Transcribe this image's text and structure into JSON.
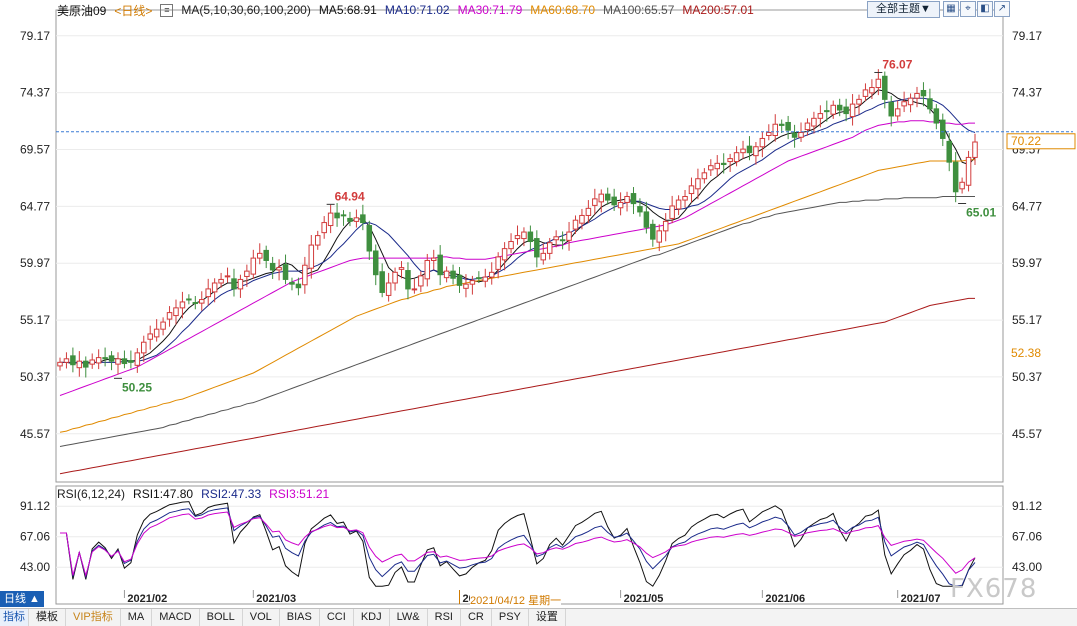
{
  "header": {
    "symbol": "美原油09",
    "period": "<日线>",
    "ma_params": "MA(5,10,30,60,100,200)",
    "ma_values": [
      {
        "label": "MA5:68.91",
        "color": "#111111"
      },
      {
        "label": "MA10:71.02",
        "color": "#1a2a8a"
      },
      {
        "label": "MA30:71.79",
        "color": "#cc00cc"
      },
      {
        "label": "MA60:68.70",
        "color": "#e08a00"
      },
      {
        "label": "MA100:65.57",
        "color": "#555555"
      },
      {
        "label": "MA200:57.01",
        "color": "#aa1a1a"
      }
    ],
    "theme_button": "全部主题▼",
    "tool_icons": [
      "grid-icon",
      "crosshair-icon",
      "left-icon",
      "popout-icon"
    ]
  },
  "rsi_header": {
    "params": "RSI(6,12,24)",
    "values": [
      {
        "label": "RSI1:47.80",
        "color": "#111111"
      },
      {
        "label": "RSI2:47.33",
        "color": "#1a2a8a"
      },
      {
        "label": "RSI3:51.21",
        "color": "#cc00cc"
      }
    ]
  },
  "bottom_bar": {
    "period_tag": "日线 ▲",
    "items": [
      "指标",
      "模板",
      "VIP指标",
      "MA",
      "MACD",
      "BOLL",
      "VOL",
      "BIAS",
      "CCI",
      "KDJ",
      "LW&",
      "RSI",
      "CR",
      "PSY",
      "设置"
    ]
  },
  "cursor_label": "2021/04/12 星期一",
  "watermark": "FX678",
  "colors": {
    "up": "#d23c3c",
    "down": "#3f8f3f",
    "grid": "#dddddd",
    "axis": "#333333"
  },
  "chart_data": {
    "type": "candlestick",
    "price_axis": {
      "ticks": [
        "79.17",
        "74.37",
        "69.57",
        "64.77",
        "59.97",
        "55.17",
        "50.37",
        "45.57"
      ],
      "ylim": [
        41.5,
        80.5
      ]
    },
    "rsi_axis": {
      "ticks": [
        "91.12",
        "67.06",
        "43.00"
      ],
      "ylim": [
        25,
        100
      ]
    },
    "x_labels": [
      "2021/02",
      "2021/03",
      "2021/04",
      "2021/05",
      "2021/06",
      "2021/07"
    ],
    "current_price": "70.22",
    "side_label": "52.38",
    "annotations": [
      {
        "text": "76.07",
        "color": "#d23c3c"
      },
      {
        "text": "64.94",
        "color": "#d23c3c"
      },
      {
        "text": "50.25",
        "color": "#3f8f3f"
      },
      {
        "text": "65.01",
        "color": "#3f8f3f"
      }
    ],
    "closes": [
      51.6,
      51.9,
      51.4,
      51.7,
      51.2,
      51.8,
      52.0,
      51.9,
      51.7,
      51.9,
      51.5,
      51.6,
      52.4,
      53.3,
      54.0,
      54.4,
      55.0,
      55.8,
      56.2,
      56.7,
      56.9,
      56.6,
      56.9,
      57.8,
      58.3,
      58.6,
      58.9,
      57.8,
      58.6,
      59.3,
      60.4,
      60.8,
      60.2,
      59.4,
      59.6,
      58.6,
      58.2,
      57.9,
      59.8,
      61.5,
      62.3,
      63.4,
      64.2,
      63.8,
      64.0,
      63.5,
      63.8,
      63.4,
      61.0,
      59.0,
      57.5,
      58.3,
      59.2,
      59.6,
      57.8,
      57.8,
      58.9,
      60.2,
      60.4,
      59.0,
      59.3,
      58.7,
      58.1,
      58.2,
      58.5,
      58.7,
      58.8,
      59.2,
      60.5,
      61.2,
      61.8,
      62.3,
      62.6,
      61.8,
      60.5,
      60.8,
      61.7,
      62.2,
      61.9,
      62.6,
      63.6,
      64.0,
      64.6,
      65.4,
      65.8,
      65.3,
      64.9,
      65.1,
      65.6,
      65.0,
      64.3,
      63.0,
      62.0,
      62.7,
      63.5,
      64.8,
      65.3,
      65.6,
      66.5,
      67.1,
      67.6,
      68.2,
      68.4,
      68.3,
      68.8,
      69.3,
      69.6,
      69.3,
      69.8,
      70.5,
      71.0,
      71.7,
      71.6,
      71.2,
      70.6,
      71.0,
      71.8,
      72.2,
      72.6,
      72.8,
      73.3,
      72.9,
      72.6,
      73.4,
      73.8,
      74.6,
      74.8,
      75.5,
      73.8,
      72.4,
      73.0,
      73.6,
      73.9,
      74.3,
      74.1,
      73.0,
      71.8,
      70.5,
      68.5,
      66.0,
      66.8,
      68.9,
      70.2
    ],
    "ma_series": [
      {
        "name": "MA5",
        "color": "#111111",
        "values": [
          51.6,
          51.6,
          51.5,
          51.6,
          51.5,
          51.6,
          51.6,
          51.8,
          51.9,
          51.9,
          51.8,
          51.7,
          51.8,
          52.1,
          52.4,
          52.9,
          53.4,
          54.0,
          54.8,
          55.6,
          56.2,
          56.6,
          56.8,
          57.2,
          57.6,
          58.0,
          58.3,
          58.3,
          58.4,
          58.5,
          58.7,
          58.9,
          59.1,
          59.2,
          59.7,
          60.0,
          59.8,
          59.3,
          59.0,
          59.2,
          59.4,
          60.2,
          61.1,
          62.1,
          62.9,
          63.5,
          63.7,
          63.7,
          63.1,
          62.0,
          60.8,
          59.6,
          59.1,
          58.8,
          58.6,
          58.7,
          58.9,
          59.2,
          59.4,
          59.2,
          59.2,
          59.1,
          59.0,
          58.7,
          58.5,
          58.4,
          58.5,
          58.8,
          59.4,
          60.0,
          60.6,
          61.2,
          61.7,
          61.9,
          61.9,
          61.7,
          61.6,
          61.5,
          61.5,
          61.9,
          62.6,
          63.1,
          63.5,
          64.1,
          64.7,
          65.0,
          65.2,
          65.3,
          65.4,
          65.2,
          65.1,
          64.8,
          64.3,
          63.9,
          63.6,
          63.6,
          63.8,
          64.4,
          65.1,
          65.6,
          66.3,
          66.9,
          67.3,
          67.8,
          68.2,
          68.5,
          68.8,
          69.0,
          69.3,
          69.6,
          70.0,
          70.4,
          70.7,
          70.9,
          71.0,
          71.0,
          71.1,
          71.3,
          71.7,
          72.1,
          72.5,
          72.7,
          72.8,
          73.0,
          73.2,
          73.7,
          74.1,
          74.6,
          74.5,
          74.3,
          73.9,
          73.7,
          73.7,
          73.5,
          73.4,
          73.0,
          72.4,
          71.6,
          70.5,
          69.6,
          68.5,
          68.3,
          68.9
        ]
      },
      {
        "name": "MA10",
        "color": "#1a2a8a",
        "values": [
          51.6,
          51.6,
          51.6,
          51.6,
          51.6,
          51.6,
          51.6,
          51.6,
          51.6,
          51.6,
          51.7,
          51.7,
          51.7,
          51.8,
          52.0,
          52.2,
          52.6,
          53.1,
          53.6,
          54.2,
          54.7,
          55.3,
          55.9,
          56.4,
          56.9,
          57.3,
          57.6,
          57.8,
          58.0,
          58.2,
          58.5,
          58.7,
          58.9,
          59.1,
          59.2,
          59.3,
          59.3,
          59.3,
          59.4,
          59.6,
          59.8,
          60.1,
          60.5,
          61.1,
          61.6,
          62.2,
          62.8,
          63.3,
          63.4,
          63.2,
          62.8,
          62.4,
          61.8,
          61.2,
          60.6,
          59.9,
          59.3,
          59.2,
          59.4,
          59.1,
          59.0,
          58.9,
          58.8,
          58.6,
          58.6,
          58.7,
          58.8,
          58.9,
          59.2,
          59.5,
          59.9,
          60.4,
          60.8,
          61.1,
          61.3,
          61.6,
          61.8,
          62.1,
          62.3,
          62.5,
          62.8,
          63.1,
          63.4,
          63.7,
          64.1,
          64.4,
          64.7,
          64.9,
          65.1,
          65.2,
          65.2,
          65.0,
          64.8,
          64.6,
          64.5,
          64.5,
          64.5,
          64.6,
          64.8,
          64.9,
          65.2,
          65.6,
          66.1,
          66.6,
          67.1,
          67.5,
          67.8,
          68.1,
          68.4,
          68.7,
          69.1,
          69.5,
          69.8,
          70.1,
          70.4,
          70.6,
          70.8,
          71.0,
          71.2,
          71.4,
          71.7,
          71.9,
          72.1,
          72.3,
          72.5,
          72.8,
          73.0,
          73.3,
          73.5,
          73.6,
          73.7,
          73.8,
          73.9,
          73.9,
          73.9,
          73.8,
          73.6,
          73.3,
          72.8,
          72.2,
          71.6,
          71.2,
          71.0
        ]
      },
      {
        "name": "MA30",
        "color": "#cc00cc",
        "values": [
          48.8,
          49.0,
          49.2,
          49.4,
          49.6,
          49.8,
          50.0,
          50.2,
          50.4,
          50.6,
          50.8,
          51.0,
          51.2,
          51.5,
          51.8,
          52.1,
          52.4,
          52.7,
          53.0,
          53.3,
          53.6,
          53.9,
          54.2,
          54.5,
          54.8,
          55.1,
          55.4,
          55.7,
          56.0,
          56.3,
          56.6,
          56.9,
          57.2,
          57.5,
          57.8,
          58.1,
          58.4,
          58.6,
          58.8,
          59.0,
          59.2,
          59.4,
          59.6,
          59.8,
          60.0,
          60.2,
          60.3,
          60.4,
          60.4,
          60.4,
          60.4,
          60.4,
          60.4,
          60.4,
          60.4,
          60.4,
          60.4,
          60.4,
          60.4,
          60.5,
          60.5,
          60.4,
          60.4,
          60.3,
          60.3,
          60.3,
          60.3,
          60.4,
          60.5,
          60.6,
          60.7,
          60.8,
          60.9,
          61.0,
          61.1,
          61.2,
          61.3,
          61.4,
          61.5,
          61.7,
          61.8,
          61.9,
          62.0,
          62.1,
          62.2,
          62.3,
          62.4,
          62.5,
          62.6,
          62.7,
          62.8,
          62.9,
          63.0,
          63.1,
          63.2,
          63.4,
          63.6,
          63.8,
          64.1,
          64.4,
          64.7,
          65.0,
          65.3,
          65.6,
          65.9,
          66.2,
          66.5,
          66.8,
          67.1,
          67.4,
          67.7,
          68.0,
          68.3,
          68.6,
          68.8,
          69.0,
          69.2,
          69.4,
          69.6,
          69.8,
          70.0,
          70.2,
          70.4,
          70.6,
          70.9,
          71.2,
          71.4,
          71.6,
          71.7,
          71.8,
          71.9,
          71.9,
          72.0,
          72.0,
          72.0,
          71.9,
          71.9,
          71.8,
          71.8,
          71.7,
          71.7,
          71.8,
          71.8
        ]
      },
      {
        "name": "MA60",
        "color": "#e08a00",
        "values": [
          45.7,
          45.8,
          46.0,
          46.1,
          46.3,
          46.4,
          46.6,
          46.7,
          46.9,
          47.0,
          47.2,
          47.3,
          47.5,
          47.6,
          47.8,
          47.9,
          48.1,
          48.2,
          48.4,
          48.5,
          48.7,
          48.9,
          49.1,
          49.3,
          49.5,
          49.7,
          49.9,
          50.1,
          50.3,
          50.5,
          50.7,
          51.0,
          51.3,
          51.6,
          51.9,
          52.2,
          52.5,
          52.8,
          53.1,
          53.4,
          53.7,
          54.0,
          54.3,
          54.6,
          54.9,
          55.2,
          55.5,
          55.7,
          55.9,
          56.1,
          56.3,
          56.5,
          56.7,
          56.9,
          57.0,
          57.2,
          57.4,
          57.5,
          57.7,
          57.8,
          58.0,
          58.1,
          58.2,
          58.3,
          58.4,
          58.5,
          58.6,
          58.7,
          58.8,
          58.9,
          59.0,
          59.1,
          59.2,
          59.3,
          59.4,
          59.5,
          59.6,
          59.7,
          59.8,
          59.9,
          60.0,
          60.1,
          60.2,
          60.3,
          60.4,
          60.5,
          60.6,
          60.7,
          60.8,
          60.9,
          61.0,
          61.1,
          61.2,
          61.3,
          61.4,
          61.5,
          61.6,
          61.8,
          62.0,
          62.2,
          62.4,
          62.6,
          62.8,
          63.0,
          63.2,
          63.4,
          63.6,
          63.8,
          64.0,
          64.2,
          64.4,
          64.6,
          64.8,
          65.0,
          65.2,
          65.4,
          65.6,
          65.8,
          66.0,
          66.2,
          66.4,
          66.6,
          66.8,
          67.0,
          67.2,
          67.4,
          67.6,
          67.8,
          67.9,
          68.0,
          68.1,
          68.2,
          68.3,
          68.4,
          68.5,
          68.6,
          68.6,
          68.6,
          68.6,
          68.6,
          68.6,
          68.7,
          68.7
        ]
      },
      {
        "name": "MA100",
        "color": "#555555",
        "values": [
          44.5,
          44.6,
          44.7,
          44.8,
          44.9,
          45.0,
          45.1,
          45.2,
          45.3,
          45.4,
          45.5,
          45.6,
          45.7,
          45.8,
          45.9,
          46.0,
          46.1,
          46.3,
          46.4,
          46.6,
          46.7,
          46.9,
          47.0,
          47.2,
          47.3,
          47.5,
          47.6,
          47.8,
          47.9,
          48.1,
          48.2,
          48.4,
          48.6,
          48.8,
          49.0,
          49.2,
          49.4,
          49.6,
          49.8,
          50.0,
          50.2,
          50.4,
          50.6,
          50.8,
          51.0,
          51.2,
          51.4,
          51.6,
          51.8,
          52.0,
          52.2,
          52.4,
          52.6,
          52.8,
          53.0,
          53.2,
          53.4,
          53.6,
          53.8,
          54.0,
          54.2,
          54.4,
          54.6,
          54.8,
          55.0,
          55.2,
          55.4,
          55.6,
          55.8,
          56.0,
          56.2,
          56.4,
          56.6,
          56.8,
          57.0,
          57.2,
          57.4,
          57.6,
          57.8,
          58.0,
          58.2,
          58.4,
          58.6,
          58.8,
          59.0,
          59.2,
          59.4,
          59.6,
          59.8,
          60.0,
          60.2,
          60.4,
          60.6,
          60.7,
          60.9,
          61.1,
          61.3,
          61.5,
          61.7,
          61.9,
          62.1,
          62.3,
          62.5,
          62.7,
          62.9,
          63.1,
          63.3,
          63.4,
          63.6,
          63.8,
          63.9,
          64.1,
          64.2,
          64.3,
          64.4,
          64.5,
          64.6,
          64.7,
          64.8,
          64.9,
          65.0,
          65.1,
          65.1,
          65.2,
          65.2,
          65.3,
          65.3,
          65.3,
          65.4,
          65.4,
          65.4,
          65.5,
          65.5,
          65.5,
          65.5,
          65.5,
          65.5,
          65.6,
          65.6,
          65.6,
          65.6,
          65.6,
          65.6
        ]
      },
      {
        "name": "MA200",
        "color": "#aa1a1a",
        "values": [
          42.2,
          42.3,
          42.4,
          42.5,
          42.6,
          42.7,
          42.8,
          42.9,
          43.0,
          43.1,
          43.2,
          43.3,
          43.4,
          43.5,
          43.6,
          43.7,
          43.8,
          43.9,
          44.0,
          44.1,
          44.2,
          44.3,
          44.4,
          44.5,
          44.6,
          44.7,
          44.8,
          44.9,
          45.0,
          45.1,
          45.2,
          45.3,
          45.4,
          45.5,
          45.6,
          45.7,
          45.8,
          45.9,
          46.0,
          46.1,
          46.2,
          46.3,
          46.4,
          46.5,
          46.6,
          46.7,
          46.8,
          46.9,
          47.0,
          47.1,
          47.2,
          47.3,
          47.4,
          47.5,
          47.6,
          47.7,
          47.8,
          47.9,
          48.0,
          48.1,
          48.2,
          48.3,
          48.4,
          48.5,
          48.6,
          48.7,
          48.8,
          48.9,
          49.0,
          49.1,
          49.2,
          49.3,
          49.4,
          49.5,
          49.6,
          49.7,
          49.8,
          49.9,
          50.0,
          50.1,
          50.2,
          50.3,
          50.4,
          50.5,
          50.6,
          50.7,
          50.8,
          50.9,
          51.0,
          51.1,
          51.2,
          51.3,
          51.4,
          51.5,
          51.6,
          51.7,
          51.8,
          51.9,
          52.0,
          52.1,
          52.2,
          52.3,
          52.4,
          52.5,
          52.6,
          52.7,
          52.8,
          52.9,
          53.0,
          53.1,
          53.2,
          53.3,
          53.4,
          53.5,
          53.6,
          53.7,
          53.8,
          53.9,
          54.0,
          54.1,
          54.2,
          54.3,
          54.4,
          54.5,
          54.6,
          54.7,
          54.8,
          54.9,
          55.0,
          55.2,
          55.4,
          55.6,
          55.8,
          56.0,
          56.2,
          56.4,
          56.5,
          56.6,
          56.7,
          56.8,
          56.9,
          57.0,
          57.0
        ]
      }
    ],
    "rsi_series": [
      {
        "name": "RSI1",
        "color": "#111111"
      },
      {
        "name": "RSI2",
        "color": "#1a2a8a"
      },
      {
        "name": "RSI3",
        "color": "#cc00cc"
      }
    ]
  }
}
